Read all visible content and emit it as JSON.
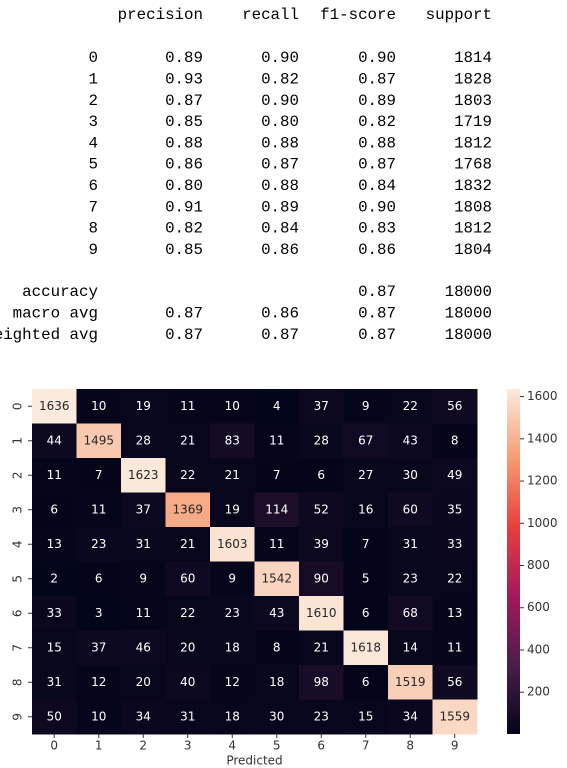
{
  "report": {
    "header": [
      "precision",
      "recall",
      "f1-score",
      "support"
    ],
    "rows": [
      {
        "label": "0",
        "cells": [
          "0.89",
          "0.90",
          "0.90",
          "1814"
        ]
      },
      {
        "label": "1",
        "cells": [
          "0.93",
          "0.82",
          "0.87",
          "1828"
        ]
      },
      {
        "label": "2",
        "cells": [
          "0.87",
          "0.90",
          "0.89",
          "1803"
        ]
      },
      {
        "label": "3",
        "cells": [
          "0.85",
          "0.80",
          "0.82",
          "1719"
        ]
      },
      {
        "label": "4",
        "cells": [
          "0.88",
          "0.88",
          "0.88",
          "1812"
        ]
      },
      {
        "label": "5",
        "cells": [
          "0.86",
          "0.87",
          "0.87",
          "1768"
        ]
      },
      {
        "label": "6",
        "cells": [
          "0.80",
          "0.88",
          "0.84",
          "1832"
        ]
      },
      {
        "label": "7",
        "cells": [
          "0.91",
          "0.89",
          "0.90",
          "1808"
        ]
      },
      {
        "label": "8",
        "cells": [
          "0.82",
          "0.84",
          "0.83",
          "1812"
        ]
      },
      {
        "label": "9",
        "cells": [
          "0.85",
          "0.86",
          "0.86",
          "1804"
        ]
      }
    ],
    "summary": [
      {
        "label": "accuracy",
        "cells": [
          null,
          null,
          "0.87",
          "18000"
        ]
      },
      {
        "label": "macro avg",
        "cells": [
          "0.87",
          "0.86",
          "0.87",
          "18000"
        ]
      },
      {
        "label": "weighted avg",
        "cells": [
          "0.87",
          "0.87",
          "0.87",
          "18000"
        ]
      }
    ]
  },
  "chart_data": {
    "type": "heatmap",
    "xlabel": "Predicted",
    "x": [
      "0",
      "1",
      "2",
      "3",
      "4",
      "5",
      "6",
      "7",
      "8",
      "9"
    ],
    "y": [
      "0",
      "1",
      "2",
      "3",
      "4",
      "5",
      "6",
      "7",
      "8",
      "9"
    ],
    "z": [
      [
        1636,
        10,
        19,
        11,
        10,
        4,
        37,
        9,
        22,
        56
      ],
      [
        44,
        1495,
        28,
        21,
        83,
        11,
        28,
        67,
        43,
        8
      ],
      [
        11,
        7,
        1623,
        22,
        21,
        7,
        6,
        27,
        30,
        49
      ],
      [
        6,
        11,
        37,
        1369,
        19,
        114,
        52,
        16,
        60,
        35
      ],
      [
        13,
        23,
        31,
        21,
        1603,
        11,
        39,
        7,
        31,
        33
      ],
      [
        2,
        6,
        9,
        60,
        9,
        1542,
        90,
        5,
        23,
        22
      ],
      [
        33,
        3,
        11,
        22,
        23,
        43,
        1610,
        6,
        68,
        13
      ],
      [
        15,
        37,
        46,
        20,
        18,
        8,
        21,
        1618,
        14,
        11
      ],
      [
        31,
        12,
        20,
        40,
        12,
        18,
        98,
        6,
        1519,
        56
      ],
      [
        50,
        10,
        34,
        31,
        18,
        30,
        23,
        15,
        34,
        1559
      ]
    ],
    "zlim": [
      2,
      1636
    ],
    "colorbar_ticks": [
      200,
      400,
      600,
      800,
      1000,
      1200,
      1400,
      1600
    ],
    "colormap": [
      "#03051a",
      "#4c1d4b",
      "#a11a5b",
      "#e83f3f",
      "#f69c73",
      "#faebdd"
    ]
  }
}
